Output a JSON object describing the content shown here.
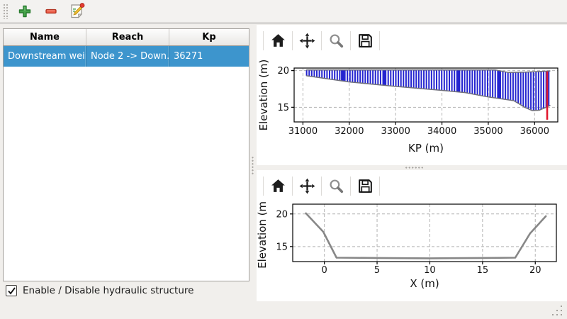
{
  "app_toolbar": {
    "buttons": [
      {
        "id": "add",
        "icon": "plus-icon"
      },
      {
        "id": "remove",
        "icon": "minus-icon"
      },
      {
        "id": "edit",
        "icon": "edit-icon"
      }
    ]
  },
  "structures_table": {
    "columns": [
      "Name",
      "Reach",
      "Kp"
    ],
    "rows": [
      {
        "name": "Downstream weir",
        "reach": "Node 2 -> Down…",
        "kp": "36271",
        "selected": true
      }
    ],
    "selection_color": "#3d95cd"
  },
  "enable_checkbox": {
    "label": "Enable / Disable hydraulic structure",
    "checked": true
  },
  "plot_toolbars": {
    "icons": [
      "home-icon",
      "pan-icon",
      "zoom-icon",
      "save-icon"
    ]
  },
  "chart_data": [
    {
      "id": "longitudinal_profile",
      "type": "area",
      "xlabel": "KP (m)",
      "ylabel": "Elevation (m)",
      "xlim": [
        30810,
        36500
      ],
      "ylim": [
        13.0,
        20.35
      ],
      "xticks": [
        31000,
        32000,
        33000,
        34000,
        35000,
        36000
      ],
      "yticks": [
        15,
        20
      ],
      "grid": true,
      "hatch": {
        "style": "vertical-lines",
        "step": 55,
        "color": "#2424d0",
        "clusters": [
          31855,
          32765,
          34355,
          35240
        ]
      },
      "series": [
        {
          "name": "crest",
          "color": "#6f6f7a",
          "width": 1.5,
          "points": [
            [
              31080,
              20.1
            ],
            [
              35150,
              20.1
            ],
            [
              35430,
              19.75
            ],
            [
              35800,
              19.8
            ],
            [
              36150,
              19.9
            ],
            [
              36330,
              19.95
            ]
          ]
        },
        {
          "name": "bed",
          "color": "#6f6f7a",
          "width": 1.5,
          "points": [
            [
              31080,
              19.3
            ],
            [
              32000,
              18.45
            ],
            [
              33000,
              17.85
            ],
            [
              34000,
              17.3
            ],
            [
              34500,
              17.0
            ],
            [
              35000,
              16.4
            ],
            [
              35550,
              15.9
            ],
            [
              35800,
              14.95
            ],
            [
              35950,
              14.55
            ],
            [
              36100,
              14.6
            ],
            [
              36250,
              15.0
            ],
            [
              36330,
              15.25
            ]
          ]
        }
      ],
      "marker_line": {
        "name": "structure-position",
        "x": 36271,
        "y_from": 13.3,
        "y_to": 19.9,
        "color": "#e1182e",
        "width": 2.6
      }
    },
    {
      "id": "cross_section",
      "type": "line",
      "xlabel": "X (m)",
      "ylabel": "Elevation (m)",
      "xlim": [
        -3.0,
        22.0
      ],
      "ylim": [
        12.7,
        21.5
      ],
      "xticks": [
        0,
        5,
        10,
        15,
        20
      ],
      "yticks": [
        15,
        20
      ],
      "grid": true,
      "series": [
        {
          "name": "section",
          "color": "#878787",
          "width": 2.6,
          "points": [
            [
              -1.75,
              20.1
            ],
            [
              -0.1,
              17.25
            ],
            [
              1.15,
              13.3
            ],
            [
              5,
              13.25
            ],
            [
              10,
              13.2
            ],
            [
              15,
              13.25
            ],
            [
              18.1,
              13.3
            ],
            [
              19.5,
              17.0
            ],
            [
              21.0,
              19.65
            ]
          ]
        }
      ]
    }
  ]
}
